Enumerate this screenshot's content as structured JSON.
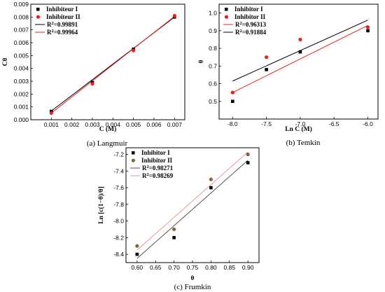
{
  "chart_data": [
    {
      "id": "langmuir",
      "type": "scatter",
      "caption": "(a) Langmuir",
      "xlabel": "C (M)",
      "ylabel": "Cθ",
      "xlim": [
        0.0,
        0.0075
      ],
      "ylim": [
        0.0,
        0.009
      ],
      "xticks": [
        0.001,
        0.002,
        0.003,
        0.004,
        0.005,
        0.006,
        0.007
      ],
      "xtick_labels": [
        "0.001",
        "0.002",
        "0.003",
        "0.004",
        "0.005",
        "0.006",
        "0.007"
      ],
      "yticks": [
        0,
        0.001,
        0.002,
        0.003,
        0.004,
        0.005,
        0.006,
        0.007,
        0.008,
        0.009
      ],
      "ytick_labels": [
        "0.000",
        "0.001",
        "0.002",
        "0.003",
        "0.004",
        "0.005",
        "0.006",
        "0.007",
        "0.008",
        "0.009"
      ],
      "legend_position": "top-left",
      "series": [
        {
          "name": "Inhibiteur I",
          "marker": "square",
          "color": "#000000",
          "x": [
            0.001,
            0.003,
            0.005,
            0.007
          ],
          "y": [
            0.00065,
            0.0029,
            0.0055,
            0.008
          ]
        },
        {
          "name": "Inhibiteur II",
          "marker": "circle",
          "color": "#e8201e",
          "x": [
            0.001,
            0.003,
            0.005,
            0.007
          ],
          "y": [
            0.00052,
            0.0028,
            0.0054,
            0.0081
          ]
        }
      ],
      "fits": [
        {
          "label_prefix": "R",
          "label_sup": "2",
          "label_value": "=0.99891",
          "color": "#000000",
          "x": [
            0.001,
            0.007
          ],
          "y": [
            0.00068,
            0.008
          ]
        },
        {
          "label_prefix": "R",
          "label_sup": "2",
          "label_value": "=0.99964",
          "color": "#e8201e",
          "x": [
            0.001,
            0.007
          ],
          "y": [
            0.00052,
            0.00805
          ]
        }
      ]
    },
    {
      "id": "temkin",
      "type": "scatter",
      "caption": "(b) Temkin",
      "xlabel": "Ln C (M)",
      "ylabel": "θ",
      "xlim": [
        -8.2,
        -5.85
      ],
      "ylim": [
        0.4,
        1.05
      ],
      "xticks": [
        -8.0,
        -7.5,
        -7.0,
        -6.5,
        -6.0
      ],
      "xtick_labels": [
        "-8.0",
        "-7.5",
        "-7.0",
        "-6.5",
        "-6.0"
      ],
      "yticks": [
        0.5,
        0.6,
        0.7,
        0.8,
        0.9,
        1.0
      ],
      "ytick_labels": [
        "0.5",
        "0.6",
        "0.7",
        "0.8",
        "0.9",
        "1.0"
      ],
      "legend_position": "top-left",
      "series": [
        {
          "name": "Inhibitor I",
          "marker": "square",
          "color": "#000000",
          "x": [
            -8.0,
            -7.5,
            -7.0,
            -6.0
          ],
          "y": [
            0.5,
            0.68,
            0.78,
            0.9
          ]
        },
        {
          "name": "Inhibitor II",
          "marker": "circle",
          "color": "#e8201e",
          "x": [
            -8.0,
            -7.5,
            -7.0,
            -6.0
          ],
          "y": [
            0.55,
            0.75,
            0.85,
            0.92
          ]
        }
      ],
      "fits": [
        {
          "label_prefix": "R",
          "label_sup": "2",
          "label_value": "=0.96313",
          "color": "#e8201e",
          "x": [
            -8.0,
            -6.0
          ],
          "y": [
            0.55,
            0.93
          ]
        },
        {
          "label_prefix": "R",
          "label_sup": "2",
          "label_value": "=0.91884",
          "color": "#000000",
          "x": [
            -8.0,
            -6.0
          ],
          "y": [
            0.615,
            0.96
          ]
        }
      ]
    },
    {
      "id": "frumkin",
      "type": "scatter",
      "caption": "(c) Frumkin",
      "xlabel": "θ",
      "ylabel": "Ln [c(1−θ)/θ]",
      "xlim": [
        0.57,
        0.93
      ],
      "ylim": [
        -8.5,
        -7.12
      ],
      "xticks": [
        0.6,
        0.65,
        0.7,
        0.75,
        0.8,
        0.85,
        0.9
      ],
      "xtick_labels": [
        "0.60",
        "0.65",
        "0.70",
        "0.75",
        "0.80",
        "0.85",
        "0.90"
      ],
      "yticks": [
        -8.4,
        -8.2,
        -8.0,
        -7.8,
        -7.6,
        -7.4,
        -7.2
      ],
      "ytick_labels": [
        "-8.4",
        "-8.2",
        "-8.0",
        "-7.8",
        "-7.6",
        "-7.4",
        "-7.2"
      ],
      "legend_position": "top-left",
      "series": [
        {
          "name": "Inhibitor I",
          "marker": "square",
          "color": "#000000",
          "x": [
            0.6,
            0.7,
            0.8,
            0.9
          ],
          "y": [
            -8.4,
            -8.2,
            -7.6,
            -7.3
          ]
        },
        {
          "name": "Inhibitor II",
          "marker": "circle",
          "color": "#7d6a3a",
          "x": [
            0.6,
            0.7,
            0.8,
            0.9
          ],
          "y": [
            -8.3,
            -8.1,
            -7.5,
            -7.2
          ]
        }
      ],
      "fits": [
        {
          "label_prefix": "R",
          "label_sup": "2",
          "label_value": "=0.98271",
          "color": "#555555",
          "x": [
            0.6,
            0.9
          ],
          "y": [
            -8.45,
            -7.27
          ]
        },
        {
          "label_prefix": "R",
          "label_sup": "2",
          "label_value": "=0.98269",
          "color": "#e89a9a",
          "x": [
            0.6,
            0.9
          ],
          "y": [
            -8.35,
            -7.17
          ]
        }
      ]
    }
  ]
}
